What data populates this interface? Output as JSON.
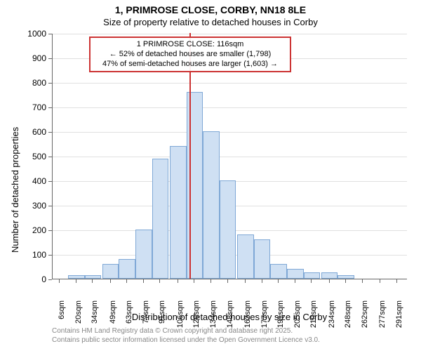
{
  "chart": {
    "type": "histogram",
    "title_line1": "1, PRIMROSE CLOSE, CORBY, NN18 8LE",
    "title_line2": "Size of property relative to detached houses in Corby",
    "ylabel": "Number of detached properties",
    "xlabel": "Distribution of detached houses by size in Corby",
    "title_fontsize": 14,
    "subtitle_fontsize": 13,
    "axis_label_fontsize": 13,
    "tick_fontsize": 12,
    "xtick_fontsize": 11,
    "annotation_fontsize": 11,
    "background_color": "#ffffff",
    "bar_fill": "#cfe0f3",
    "bar_border": "#7fa8d6",
    "grid_color": "#e0e0e0",
    "axis_color": "#666666",
    "annotation_border": "#cc3333",
    "marker_line_color": "#cc3333",
    "ylim": [
      0,
      1000
    ],
    "ytick_step": 100,
    "yticks": [
      0,
      100,
      200,
      300,
      400,
      500,
      600,
      700,
      800,
      900,
      1000
    ],
    "x_min": 0,
    "x_max": 300,
    "xticks": [
      6,
      20,
      34,
      49,
      63,
      77,
      91,
      106,
      120,
      134,
      148,
      163,
      177,
      191,
      205,
      219,
      234,
      248,
      262,
      277,
      291
    ],
    "xtick_labels": [
      "6sqm",
      "20sqm",
      "34sqm",
      "49sqm",
      "63sqm",
      "77sqm",
      "91sqm",
      "106sqm",
      "120sqm",
      "134sqm",
      "148sqm",
      "163sqm",
      "177sqm",
      "191sqm",
      "205sqm",
      "219sqm",
      "234sqm",
      "248sqm",
      "262sqm",
      "277sqm",
      "291sqm"
    ],
    "bins": [
      {
        "x": 20,
        "value": 15
      },
      {
        "x": 34,
        "value": 15
      },
      {
        "x": 49,
        "value": 60
      },
      {
        "x": 63,
        "value": 80
      },
      {
        "x": 77,
        "value": 200
      },
      {
        "x": 91,
        "value": 490
      },
      {
        "x": 106,
        "value": 540
      },
      {
        "x": 120,
        "value": 760
      },
      {
        "x": 134,
        "value": 600
      },
      {
        "x": 148,
        "value": 400
      },
      {
        "x": 163,
        "value": 180
      },
      {
        "x": 177,
        "value": 160
      },
      {
        "x": 191,
        "value": 60
      },
      {
        "x": 205,
        "value": 40
      },
      {
        "x": 219,
        "value": 25
      },
      {
        "x": 234,
        "value": 25
      },
      {
        "x": 248,
        "value": 15
      }
    ],
    "bin_width_sqm": 14,
    "marker_x": 116,
    "annotation": {
      "line1": "1 PRIMROSE CLOSE: 116sqm",
      "line2": "← 52% of detached houses are smaller (1,798)",
      "line3": "47% of semi-detached houses are larger (1,603) →"
    },
    "footer_line1": "Contains HM Land Registry data © Crown copyright and database right 2025.",
    "footer_line2": "Contains public sector information licensed under the Open Government Licence v3.0."
  }
}
